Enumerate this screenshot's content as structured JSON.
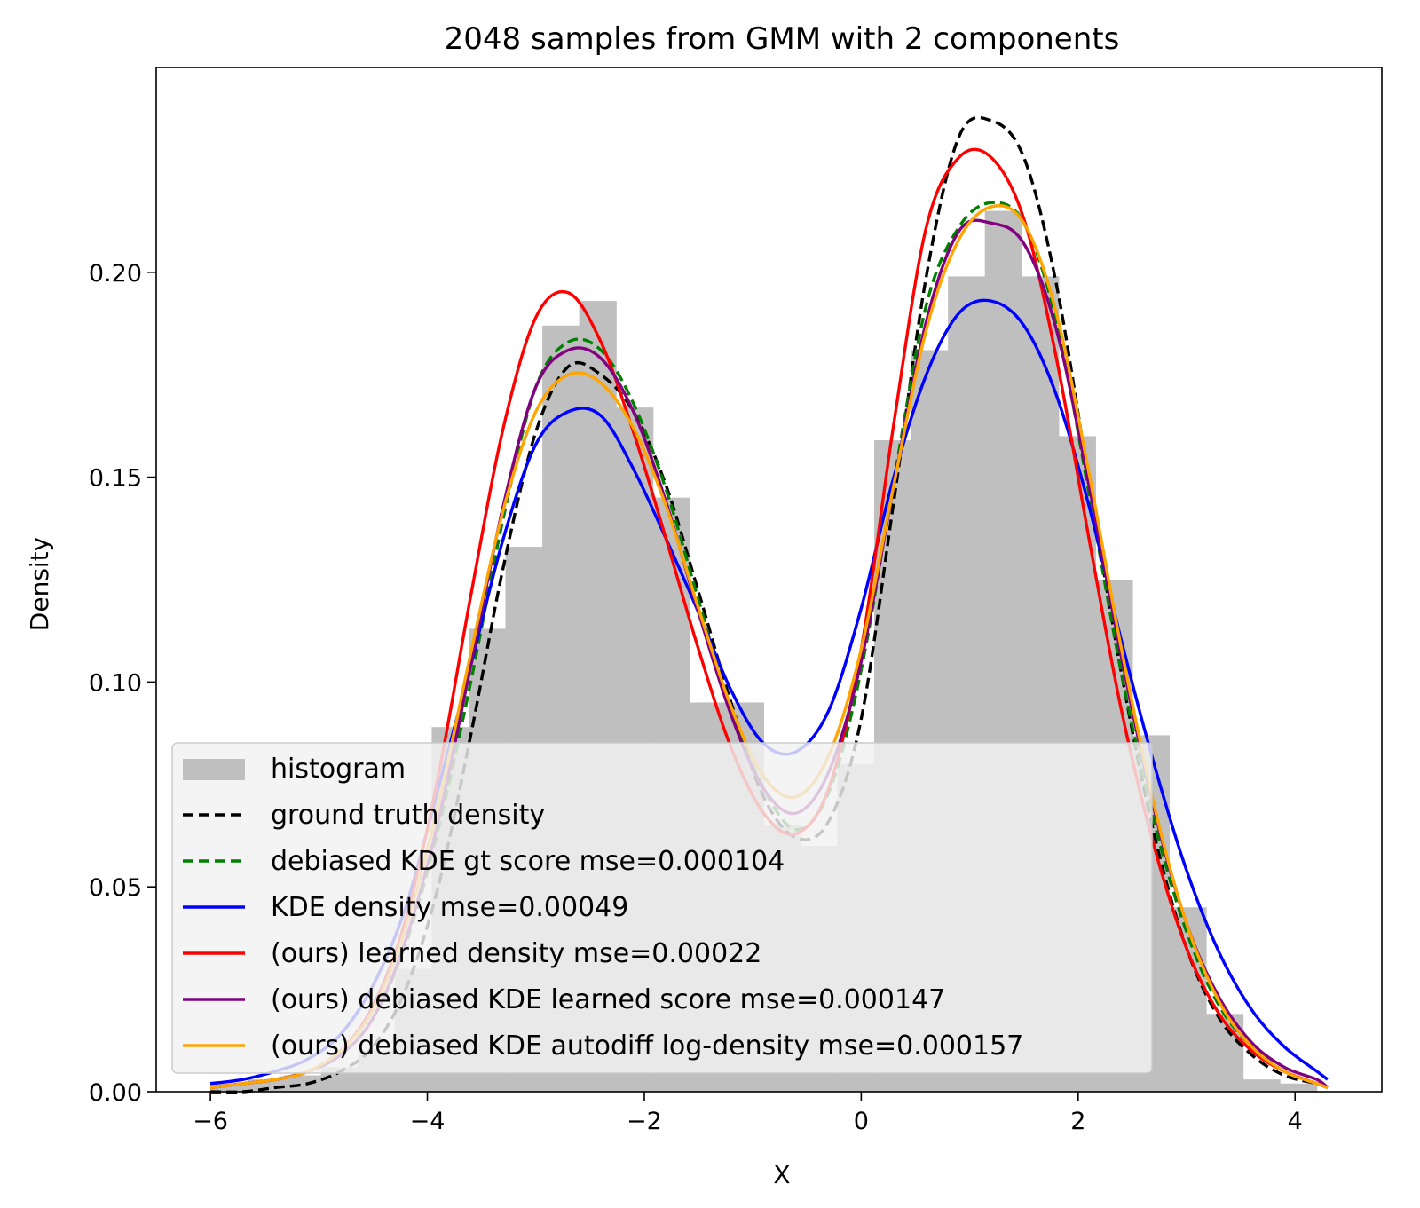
{
  "chart_data": {
    "type": "line",
    "title": "2048 samples from GMM with 2 components",
    "xlabel": "X",
    "ylabel": "Density",
    "xlim": [
      -6.5,
      4.8
    ],
    "ylim": [
      0.0,
      0.25
    ],
    "grid": false,
    "legend_position": "lower-left",
    "x_ticks": [
      {
        "value": -6,
        "label": "−6"
      },
      {
        "value": -4,
        "label": "−4"
      },
      {
        "value": -2,
        "label": "−2"
      },
      {
        "value": 0,
        "label": "0"
      },
      {
        "value": 2,
        "label": "2"
      },
      {
        "value": 4,
        "label": "4"
      }
    ],
    "y_ticks": [
      {
        "value": 0.0,
        "label": "0.00"
      },
      {
        "value": 0.05,
        "label": "0.05"
      },
      {
        "value": 0.1,
        "label": "0.10"
      },
      {
        "value": 0.15,
        "label": "0.15"
      },
      {
        "value": 0.2,
        "label": "0.20"
      }
    ],
    "histogram": {
      "name": "histogram",
      "color": "#bfbfbf",
      "bin_edges": [
        -6.0,
        -5.66,
        -5.32,
        -4.98,
        -4.64,
        -4.3,
        -3.96,
        -3.62,
        -3.28,
        -2.94,
        -2.6,
        -2.26,
        -1.92,
        -1.58,
        -1.24,
        -0.9,
        -0.56,
        -0.22,
        0.12,
        0.46,
        0.8,
        1.14,
        1.48,
        1.82,
        2.16,
        2.5,
        2.84,
        3.18,
        3.52,
        3.86,
        4.2
      ],
      "counts": [
        0.002,
        0.003,
        0.004,
        0.006,
        0.01,
        0.03,
        0.089,
        0.113,
        0.133,
        0.187,
        0.193,
        0.167,
        0.145,
        0.095,
        0.095,
        0.065,
        0.06,
        0.08,
        0.159,
        0.181,
        0.199,
        0.215,
        0.199,
        0.16,
        0.125,
        0.087,
        0.045,
        0.019,
        0.003,
        0.002
      ]
    },
    "x": [
      -6.0,
      -5.7,
      -5.4,
      -5.1,
      -4.8,
      -4.5,
      -4.2,
      -3.9,
      -3.6,
      -3.3,
      -3.0,
      -2.7,
      -2.4,
      -2.1,
      -1.8,
      -1.5,
      -1.2,
      -0.9,
      -0.6,
      -0.3,
      0.0,
      0.3,
      0.6,
      0.9,
      1.2,
      1.5,
      1.8,
      2.1,
      2.4,
      2.7,
      3.0,
      3.3,
      3.6,
      3.9,
      4.2,
      4.3
    ],
    "series": [
      {
        "name": "ground truth density",
        "color": "#000000",
        "dash": "dashed",
        "values": [
          0.0,
          0.0,
          0.001,
          0.002,
          0.005,
          0.011,
          0.025,
          0.05,
          0.087,
          0.128,
          0.161,
          0.177,
          0.175,
          0.166,
          0.148,
          0.122,
          0.095,
          0.072,
          0.062,
          0.066,
          0.091,
          0.144,
          0.199,
          0.233,
          0.237,
          0.228,
          0.197,
          0.149,
          0.102,
          0.063,
          0.035,
          0.018,
          0.009,
          0.004,
          0.002,
          0.001
        ]
      },
      {
        "name": "debiased KDE gt score mse=0.000104",
        "color": "#008000",
        "dash": "dashed",
        "values": [
          0.001,
          0.002,
          0.003,
          0.005,
          0.009,
          0.018,
          0.036,
          0.064,
          0.1,
          0.14,
          0.172,
          0.183,
          0.181,
          0.168,
          0.147,
          0.12,
          0.093,
          0.074,
          0.064,
          0.073,
          0.103,
          0.149,
          0.192,
          0.211,
          0.217,
          0.212,
          0.188,
          0.146,
          0.102,
          0.066,
          0.039,
          0.021,
          0.011,
          0.005,
          0.002,
          0.001
        ]
      },
      {
        "name": "KDE density mse=0.00049",
        "color": "#0000ff",
        "dash": "solid",
        "values": [
          0.002,
          0.003,
          0.005,
          0.008,
          0.014,
          0.026,
          0.045,
          0.074,
          0.104,
          0.135,
          0.158,
          0.166,
          0.165,
          0.152,
          0.135,
          0.117,
          0.098,
          0.085,
          0.083,
          0.093,
          0.118,
          0.15,
          0.175,
          0.19,
          0.193,
          0.187,
          0.17,
          0.143,
          0.11,
          0.08,
          0.054,
          0.034,
          0.02,
          0.011,
          0.005,
          0.003
        ]
      },
      {
        "name": "(ours) learned density mse=0.00022",
        "color": "#ff0000",
        "dash": "solid",
        "values": [
          0.001,
          0.002,
          0.003,
          0.005,
          0.01,
          0.021,
          0.042,
          0.077,
          0.121,
          0.162,
          0.189,
          0.195,
          0.183,
          0.161,
          0.135,
          0.108,
          0.084,
          0.068,
          0.063,
          0.074,
          0.108,
          0.163,
          0.211,
          0.228,
          0.228,
          0.213,
          0.179,
          0.135,
          0.093,
          0.06,
          0.035,
          0.019,
          0.01,
          0.005,
          0.002,
          0.001
        ]
      },
      {
        "name": "(ours) debiased KDE learned score mse=0.000147",
        "color": "#800080",
        "dash": "solid",
        "values": [
          0.001,
          0.002,
          0.003,
          0.005,
          0.009,
          0.018,
          0.037,
          0.066,
          0.104,
          0.143,
          0.172,
          0.181,
          0.179,
          0.166,
          0.144,
          0.117,
          0.092,
          0.074,
          0.068,
          0.078,
          0.105,
          0.148,
          0.188,
          0.21,
          0.212,
          0.207,
          0.186,
          0.148,
          0.106,
          0.069,
          0.041,
          0.023,
          0.012,
          0.006,
          0.003,
          0.001
        ]
      },
      {
        "name": "(ours) debiased KDE autodiff log-density mse=0.000157",
        "color": "#ffa500",
        "dash": "solid",
        "values": [
          0.001,
          0.002,
          0.003,
          0.005,
          0.01,
          0.02,
          0.04,
          0.07,
          0.107,
          0.142,
          0.166,
          0.175,
          0.173,
          0.162,
          0.143,
          0.118,
          0.094,
          0.077,
          0.072,
          0.082,
          0.108,
          0.148,
          0.186,
          0.208,
          0.216,
          0.212,
          0.19,
          0.151,
          0.108,
          0.07,
          0.041,
          0.022,
          0.011,
          0.005,
          0.002,
          0.001
        ]
      }
    ],
    "legend": [
      {
        "label": "histogram",
        "kind": "patch",
        "color": "#bfbfbf"
      },
      {
        "label": "ground truth density",
        "kind": "dashed",
        "color": "#000000"
      },
      {
        "label": "debiased KDE gt score mse=0.000104",
        "kind": "dashed",
        "color": "#008000"
      },
      {
        "label": "KDE density mse=0.00049",
        "kind": "solid",
        "color": "#0000ff"
      },
      {
        "label": "(ours) learned density mse=0.00022",
        "kind": "solid",
        "color": "#ff0000"
      },
      {
        "label": "(ours) debiased KDE learned score mse=0.000147",
        "kind": "solid",
        "color": "#800080"
      },
      {
        "label": "(ours) debiased KDE autodiff log-density mse=0.000157",
        "kind": "solid",
        "color": "#ffa500"
      }
    ]
  }
}
